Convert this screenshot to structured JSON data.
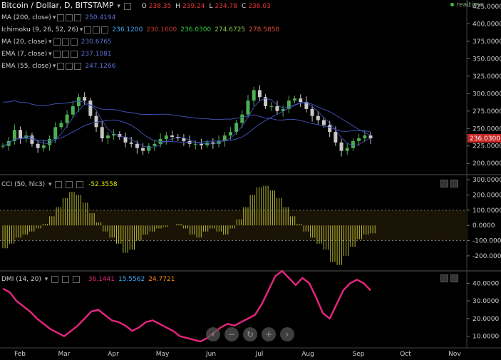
{
  "header": {
    "symbol_label": "Bitcoin / Dollar, D, BITSTAMP",
    "ohlc": [
      {
        "key": "O",
        "value": "238.35"
      },
      {
        "key": "H",
        "value": "239.24"
      },
      {
        "key": "L",
        "value": "234.78"
      },
      {
        "key": "C",
        "value": "236.03"
      }
    ],
    "realtime_label": "realtime"
  },
  "indicators": [
    {
      "label": "MA (200, close)",
      "values": [
        {
          "text": "250.4194",
          "color": "#5b6fd6"
        }
      ]
    },
    {
      "label": "Ichimoku (9, 26, 52, 26)",
      "values": [
        {
          "text": "236.1200",
          "color": "#3fa9f5"
        },
        {
          "text": "230.1600",
          "color": "#c0392b"
        },
        {
          "text": "236.0300",
          "color": "#2ecc40"
        },
        {
          "text": "274.6725",
          "color": "#8bc34a"
        },
        {
          "text": "278.5850",
          "color": "#e74c3c"
        }
      ]
    },
    {
      "label": "MA (20, close)",
      "values": [
        {
          "text": "230.6765",
          "color": "#5b6fd6"
        }
      ]
    },
    {
      "label": "EMA (7, close)",
      "values": [
        {
          "text": "237.1081",
          "color": "#5b6fd6"
        }
      ]
    },
    {
      "label": "EMA (55, close)",
      "values": [
        {
          "text": "247.1266",
          "color": "#5b6fd6"
        }
      ]
    }
  ],
  "cci_label": "CCI (50, hlc3)",
  "cci_value": "-52.3558",
  "dmi_label": "DMI (14, 20)",
  "dmi_values": [
    {
      "text": "36.1441",
      "color": "#e0267b"
    },
    {
      "text": "15.5562",
      "color": "#3fa9f5"
    },
    {
      "text": "24.7721",
      "color": "#ff8c1a"
    }
  ],
  "price_tag": "236.0300",
  "navigation": [
    "rewind-button",
    "zoom-out-button",
    "reset-button",
    "zoom-in-button",
    "forward-button"
  ],
  "colors": {
    "up": "#4caf50",
    "down": "#c8c8c8",
    "ma": "#3f4faf",
    "cci": "#b8b830",
    "dmi": "#e0267b",
    "price_tag": "#c62828"
  },
  "chart_data": [
    {
      "type": "candlestick",
      "title": "Bitcoin / Dollar, D, BITSTAMP",
      "x_categories": [
        "Feb",
        "Mar",
        "Apr",
        "May",
        "Jun",
        "Jul",
        "Aug",
        "Sep",
        "Oct",
        "Nov"
      ],
      "y_ticks": [
        "425.0000",
        "400.0000",
        "375.0000",
        "350.0000",
        "325.0000",
        "300.0000",
        "275.0000",
        "250.0000",
        "225.0000",
        "200.0000"
      ],
      "ylim": [
        190,
        428
      ],
      "close_approx": [
        225,
        232,
        248,
        236,
        240,
        228,
        222,
        226,
        235,
        252,
        258,
        270,
        282,
        295,
        290,
        268,
        252,
        236,
        240,
        242,
        238,
        230,
        228,
        222,
        218,
        225,
        228,
        235,
        240,
        238,
        236,
        232,
        228,
        228,
        226,
        230,
        228,
        232,
        240,
        245,
        258,
        270,
        290,
        305,
        295,
        282,
        282,
        275,
        278,
        290,
        293,
        288,
        278,
        268,
        262,
        255,
        245,
        230,
        218,
        222,
        232,
        236,
        240,
        236
      ],
      "series": [
        {
          "name": "MA (200, close)",
          "last": 250.4194
        },
        {
          "name": "EMA (55, close)",
          "last": 247.1266
        },
        {
          "name": "MA (20, close)",
          "last": 230.6765
        }
      ]
    },
    {
      "type": "bar",
      "title": "CCI (50, hlc3)",
      "y_ticks": [
        "300.0000",
        "200.0000",
        "100.0000",
        "0.0000",
        "-100.0000",
        "-200.0000"
      ],
      "ylim": [
        -280,
        310
      ],
      "bands": [
        100,
        -100
      ],
      "values_approx": [
        -150,
        -120,
        -80,
        -60,
        -40,
        -20,
        10,
        60,
        120,
        180,
        220,
        200,
        150,
        80,
        20,
        -40,
        -80,
        -120,
        -180,
        -160,
        -100,
        -60,
        -40,
        -20,
        -10,
        0,
        10,
        -20,
        -60,
        -80,
        -40,
        -20,
        -40,
        -60,
        -20,
        40,
        120,
        200,
        250,
        260,
        230,
        180,
        120,
        60,
        10,
        -40,
        -80,
        -120,
        -160,
        -240,
        -260,
        -200,
        -140,
        -90,
        -60,
        -52
      ]
    },
    {
      "type": "line",
      "title": "DMI (14, 20)",
      "y_ticks": [
        "40.0000",
        "30.0000",
        "20.0000",
        "10.0000"
      ],
      "ylim": [
        5,
        45
      ],
      "values_approx": [
        37,
        35,
        30,
        27,
        24,
        20,
        17,
        14,
        12,
        10,
        13,
        16,
        20,
        24,
        25,
        22,
        19,
        18,
        16,
        13,
        15,
        18,
        19,
        17,
        15,
        13,
        10,
        9,
        8,
        7,
        9,
        12,
        15,
        17,
        16,
        18,
        20,
        22,
        28,
        36,
        44,
        47,
        43,
        39,
        43,
        40,
        32,
        23,
        20,
        28,
        36,
        40,
        42,
        40,
        36
      ]
    }
  ]
}
